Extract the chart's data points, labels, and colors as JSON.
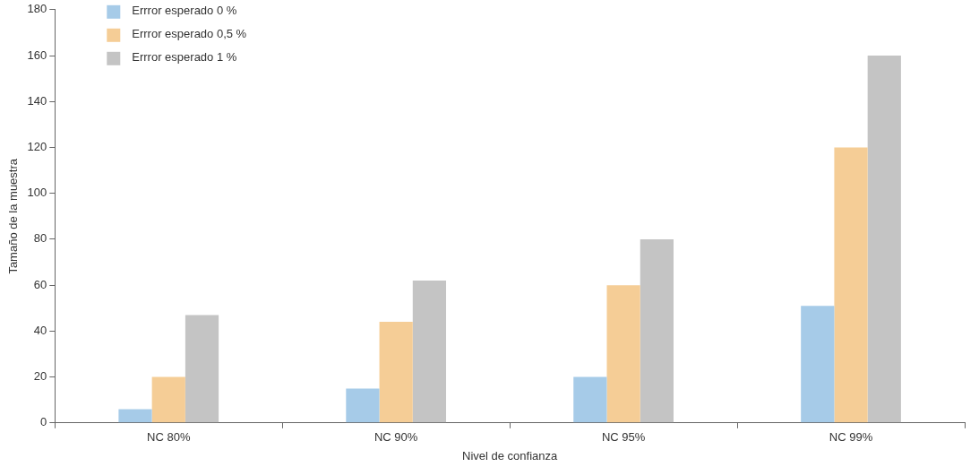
{
  "chart_data": {
    "type": "bar",
    "xlabel": "Nivel de confianza",
    "ylabel": "Tamaño de la muestra",
    "categories": [
      "NC 80%",
      "NC 90%",
      "NC 95%",
      "NC 99%"
    ],
    "series": [
      {
        "name": "Errror esperado 0 %",
        "color": "#a6cbe8",
        "values": [
          6,
          15,
          20,
          51
        ]
      },
      {
        "name": "Errror esperado 0,5 %",
        "color": "#f5cd96",
        "values": [
          20,
          44,
          60,
          120
        ]
      },
      {
        "name": "Errror esperado 1 %",
        "color": "#c4c4c4",
        "values": [
          47,
          62,
          80,
          160
        ]
      }
    ],
    "ylim": [
      0,
      180
    ],
    "yticks": [
      0,
      20,
      40,
      60,
      80,
      100,
      120,
      140,
      160,
      180
    ],
    "grid": false,
    "legend": "top left"
  }
}
